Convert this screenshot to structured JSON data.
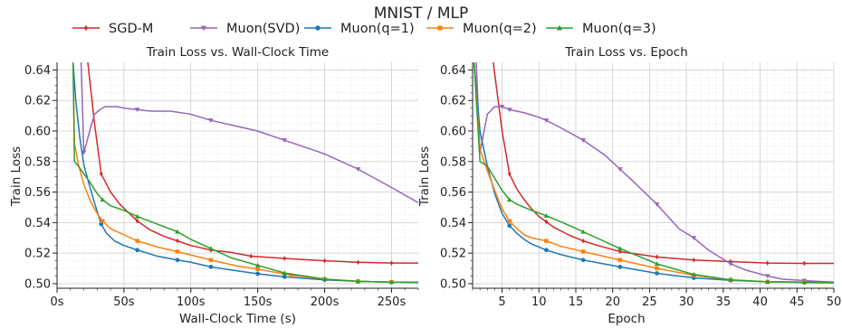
{
  "figure_title": "MNIST / MLP",
  "legend": [
    {
      "label": "SGD-M",
      "color": "#d62728",
      "marker": "diamond"
    },
    {
      "label": "Muon(SVD)",
      "color": "#9467bd",
      "marker": "triangle-down"
    },
    {
      "label": "Muon(q=1)",
      "color": "#1f77b4",
      "marker": "circle"
    },
    {
      "label": "Muon(q=2)",
      "color": "#ff7f0e",
      "marker": "square"
    },
    {
      "label": "Muon(q=3)",
      "color": "#2ca02c",
      "marker": "triangle-up"
    }
  ],
  "chart_data": [
    {
      "type": "line",
      "title": "Train Loss vs. Wall-Clock Time",
      "xlabel": "Wall-Clock Time (s)",
      "ylabel": "Train Loss",
      "xlim": [
        0,
        270
      ],
      "ylim": [
        0.497,
        0.645
      ],
      "xticks": [
        0,
        50,
        100,
        150,
        200,
        250
      ],
      "xtick_labels": [
        "0s",
        "50s",
        "100s",
        "150s",
        "200s",
        "250s"
      ],
      "yticks": [
        0.5,
        0.52,
        0.54,
        0.56,
        0.58,
        0.6,
        0.62,
        0.64
      ],
      "ytick_labels": [
        "0.50",
        "0.52",
        "0.54",
        "0.56",
        "0.58",
        "0.60",
        "0.62",
        "0.64"
      ],
      "grid": true,
      "series": [
        {
          "name": "SGD-M",
          "color": "#d62728",
          "marker": "diamond",
          "x": [
            23,
            28,
            33,
            40,
            47,
            54,
            60,
            70,
            80,
            90,
            100,
            115,
            130,
            145,
            170,
            200,
            225,
            250,
            270
          ],
          "y": [
            0.645,
            0.605,
            0.572,
            0.56,
            0.552,
            0.546,
            0.541,
            0.535,
            0.531,
            0.528,
            0.525,
            0.522,
            0.5205,
            0.518,
            0.5165,
            0.515,
            0.514,
            0.5135,
            0.5135
          ],
          "marker_idx": [
            2,
            6,
            9,
            11,
            13,
            14,
            15,
            16,
            17
          ]
        },
        {
          "name": "Muon(SVD)",
          "color": "#9467bd",
          "marker": "triangle-down",
          "x": [
            18,
            20,
            22,
            25,
            28,
            32,
            36,
            40,
            45,
            50,
            60,
            70,
            85,
            100,
            115,
            130,
            150,
            170,
            200,
            225,
            250,
            270
          ],
          "y": [
            0.645,
            0.586,
            0.592,
            0.602,
            0.611,
            0.614,
            0.616,
            0.616,
            0.616,
            0.615,
            0.614,
            0.613,
            0.613,
            0.611,
            0.607,
            0.604,
            0.6,
            0.594,
            0.585,
            0.575,
            0.563,
            0.553
          ],
          "marker_idx": [
            1,
            10,
            14,
            17,
            19
          ]
        },
        {
          "name": "Muon(q=1)",
          "color": "#1f77b4",
          "marker": "circle",
          "x": [
            12,
            14,
            17,
            20,
            24,
            28,
            33,
            37,
            43,
            50,
            60,
            75,
            90,
            100,
            115,
            130,
            150,
            170,
            200,
            225,
            250,
            270
          ],
          "y": [
            0.645,
            0.62,
            0.596,
            0.578,
            0.565,
            0.553,
            0.539,
            0.533,
            0.528,
            0.525,
            0.522,
            0.518,
            0.5155,
            0.514,
            0.511,
            0.509,
            0.5065,
            0.5045,
            0.5025,
            0.5015,
            0.501,
            0.5008
          ],
          "marker_idx": [
            6,
            10,
            12,
            14,
            16,
            17,
            18,
            19,
            20
          ]
        },
        {
          "name": "Muon(q=2)",
          "color": "#ff7f0e",
          "marker": "square",
          "x": [
            12,
            13,
            16,
            20,
            25,
            30,
            34,
            40,
            50,
            60,
            75,
            90,
            115,
            135,
            150,
            175,
            200,
            225,
            250,
            270
          ],
          "y": [
            0.645,
            0.592,
            0.578,
            0.565,
            0.554,
            0.546,
            0.541,
            0.536,
            0.532,
            0.528,
            0.524,
            0.521,
            0.5155,
            0.5115,
            0.5095,
            0.5055,
            0.503,
            0.5015,
            0.501,
            0.501
          ],
          "marker_idx": [
            6,
            9,
            11,
            12,
            14,
            15,
            16,
            17,
            18
          ]
        },
        {
          "name": "Muon(q=3)",
          "color": "#2ca02c",
          "marker": "triangle-up",
          "x": [
            12,
            13,
            16,
            20,
            25,
            30,
            34,
            40,
            50,
            60,
            75,
            90,
            100,
            115,
            130,
            150,
            170,
            200,
            225,
            250,
            270
          ],
          "y": [
            0.645,
            0.58,
            0.577,
            0.572,
            0.566,
            0.559,
            0.555,
            0.551,
            0.548,
            0.544,
            0.539,
            0.534,
            0.529,
            0.523,
            0.517,
            0.512,
            0.507,
            0.503,
            0.5015,
            0.501,
            0.501
          ],
          "marker_idx": [
            6,
            9,
            11,
            13,
            15,
            16,
            17,
            18,
            19
          ]
        }
      ]
    },
    {
      "type": "line",
      "title": "Train Loss vs. Epoch",
      "xlabel": "Epoch",
      "ylabel": "Train Loss",
      "xlim": [
        1,
        50
      ],
      "ylim": [
        0.497,
        0.645
      ],
      "xticks": [
        5,
        10,
        15,
        20,
        25,
        30,
        35,
        40,
        45,
        50
      ],
      "xtick_labels": [
        "5",
        "10",
        "15",
        "20",
        "25",
        "30",
        "35",
        "40",
        "45",
        "50"
      ],
      "yticks": [
        0.5,
        0.52,
        0.54,
        0.56,
        0.58,
        0.6,
        0.62,
        0.64
      ],
      "ytick_labels": [
        "0.50",
        "0.52",
        "0.54",
        "0.56",
        "0.58",
        "0.60",
        "0.62",
        "0.64"
      ],
      "grid": true,
      "series": [
        {
          "name": "SGD-M",
          "color": "#d62728",
          "marker": "diamond",
          "x": [
            3.8,
            5,
            6,
            7,
            8,
            9,
            10,
            11,
            12,
            14,
            16,
            18,
            21,
            26,
            31,
            36,
            41,
            46,
            50
          ],
          "y": [
            0.645,
            0.6,
            0.572,
            0.562,
            0.555,
            0.549,
            0.544,
            0.5405,
            0.537,
            0.532,
            0.528,
            0.525,
            0.521,
            0.5175,
            0.5155,
            0.5145,
            0.5135,
            0.5133,
            0.5133
          ],
          "marker_idx": [
            2,
            7,
            10,
            12,
            13,
            14,
            15,
            16,
            17
          ]
        },
        {
          "name": "Muon(SVD)",
          "color": "#9467bd",
          "marker": "triangle-down",
          "x": [
            1.5,
            2,
            3,
            4,
            5,
            6,
            8,
            10,
            11,
            13,
            16,
            19,
            21,
            23,
            26,
            29,
            31,
            33,
            36,
            38,
            41,
            43,
            46,
            50
          ],
          "y": [
            0.645,
            0.586,
            0.611,
            0.616,
            0.616,
            0.614,
            0.612,
            0.609,
            0.607,
            0.602,
            0.594,
            0.584,
            0.575,
            0.566,
            0.552,
            0.536,
            0.53,
            0.522,
            0.513,
            0.509,
            0.505,
            0.503,
            0.502,
            0.501
          ],
          "marker_idx": [
            4,
            5,
            8,
            10,
            12,
            14,
            16,
            18,
            20,
            22
          ]
        },
        {
          "name": "Muon(q=1)",
          "color": "#1f77b4",
          "marker": "circle",
          "x": [
            1.2,
            2,
            3,
            4,
            5,
            6,
            7,
            8,
            9,
            11,
            13,
            16,
            21,
            26,
            31,
            36,
            41,
            46,
            50
          ],
          "y": [
            0.645,
            0.6,
            0.577,
            0.559,
            0.546,
            0.538,
            0.533,
            0.529,
            0.526,
            0.522,
            0.519,
            0.5155,
            0.511,
            0.5068,
            0.5038,
            0.5022,
            0.5012,
            0.5008,
            0.5006
          ],
          "marker_idx": [
            5,
            9,
            11,
            12,
            13,
            14,
            15,
            16,
            17
          ]
        },
        {
          "name": "Muon(q=2)",
          "color": "#ff7f0e",
          "marker": "square",
          "x": [
            1.2,
            2,
            3,
            4,
            5,
            6,
            7,
            8,
            9,
            11,
            13,
            16,
            21,
            26,
            31,
            36,
            41,
            46,
            50
          ],
          "y": [
            0.645,
            0.588,
            0.574,
            0.561,
            0.549,
            0.541,
            0.536,
            0.532,
            0.53,
            0.528,
            0.5245,
            0.521,
            0.5155,
            0.51,
            0.5055,
            0.5025,
            0.5012,
            0.501,
            0.501
          ],
          "marker_idx": [
            5,
            9,
            11,
            12,
            13,
            14,
            15,
            16,
            17
          ]
        },
        {
          "name": "Muon(q=3)",
          "color": "#2ca02c",
          "marker": "triangle-up",
          "x": [
            1.2,
            2,
            3,
            4,
            5,
            6,
            7,
            8,
            9,
            11,
            13,
            16,
            21,
            26,
            31,
            36,
            41,
            46,
            50
          ],
          "y": [
            0.645,
            0.58,
            0.577,
            0.569,
            0.561,
            0.555,
            0.552,
            0.55,
            0.548,
            0.5445,
            0.5405,
            0.534,
            0.523,
            0.513,
            0.506,
            0.5025,
            0.5012,
            0.501,
            0.501
          ],
          "marker_idx": [
            5,
            9,
            11,
            12,
            13,
            14,
            15,
            16,
            17
          ]
        }
      ]
    }
  ]
}
